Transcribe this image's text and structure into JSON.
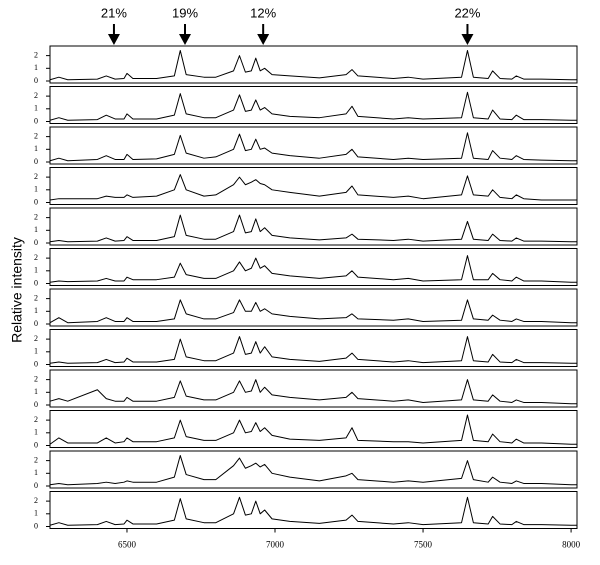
{
  "chart_data": {
    "type": "line",
    "y_label": "Relative intensity",
    "color": "#000000",
    "x": [
      6240,
      6270,
      6300,
      6400,
      6430,
      6460,
      6490,
      6500,
      6520,
      6600,
      6660,
      6680,
      6700,
      6760,
      6800,
      6860,
      6880,
      6900,
      6920,
      6935,
      6950,
      6965,
      6990,
      7050,
      7150,
      7240,
      7260,
      7280,
      7400,
      7450,
      7500,
      7630,
      7650,
      7670,
      7720,
      7735,
      7760,
      7800,
      7815,
      7840,
      7900,
      8000,
      8020
    ],
    "series": [
      {
        "values": [
          0.1,
          0.3,
          0.1,
          0.15,
          0.4,
          0.15,
          0.2,
          0.6,
          0.2,
          0.2,
          0.4,
          2.4,
          0.5,
          0.3,
          0.3,
          0.8,
          2.0,
          0.7,
          0.8,
          1.8,
          0.8,
          1.0,
          0.5,
          0.4,
          0.25,
          0.5,
          0.9,
          0.4,
          0.2,
          0.3,
          0.15,
          0.3,
          2.4,
          0.3,
          0.2,
          0.8,
          0.2,
          0.15,
          0.4,
          0.15,
          0.15,
          0.1,
          0.1
        ]
      },
      {
        "values": [
          0.1,
          0.3,
          0.1,
          0.15,
          0.5,
          0.2,
          0.2,
          0.6,
          0.2,
          0.2,
          0.5,
          2.2,
          0.6,
          0.3,
          0.3,
          0.9,
          2.1,
          0.8,
          0.9,
          1.7,
          0.9,
          1.1,
          0.6,
          0.4,
          0.3,
          0.6,
          1.2,
          0.4,
          0.2,
          0.3,
          0.2,
          0.3,
          2.3,
          0.3,
          0.2,
          0.9,
          0.2,
          0.15,
          0.5,
          0.15,
          0.15,
          0.1,
          0.1
        ]
      },
      {
        "values": [
          0.1,
          0.3,
          0.1,
          0.2,
          0.5,
          0.2,
          0.2,
          0.6,
          0.2,
          0.25,
          0.6,
          2.1,
          0.7,
          0.3,
          0.4,
          1.0,
          2.2,
          0.9,
          1.0,
          1.8,
          1.0,
          1.1,
          0.7,
          0.5,
          0.3,
          0.6,
          1.0,
          0.4,
          0.2,
          0.3,
          0.2,
          0.3,
          2.3,
          0.3,
          0.2,
          0.9,
          0.3,
          0.2,
          0.5,
          0.2,
          0.15,
          0.1,
          0.1
        ]
      },
      {
        "values": [
          0.2,
          0.3,
          0.3,
          0.3,
          0.5,
          0.4,
          0.4,
          0.6,
          0.4,
          0.5,
          1.0,
          2.2,
          1.0,
          0.5,
          0.6,
          1.4,
          2.0,
          1.4,
          1.6,
          1.8,
          1.5,
          1.4,
          1.0,
          0.8,
          0.5,
          0.8,
          1.3,
          0.6,
          0.4,
          0.5,
          0.3,
          0.6,
          2.1,
          0.6,
          0.5,
          1.0,
          0.4,
          0.3,
          0.6,
          0.3,
          0.2,
          0.2,
          0.2
        ]
      },
      {
        "values": [
          0.1,
          0.2,
          0.1,
          0.15,
          0.4,
          0.15,
          0.2,
          0.5,
          0.2,
          0.2,
          0.5,
          2.2,
          0.6,
          0.3,
          0.3,
          0.9,
          2.2,
          0.8,
          0.9,
          1.9,
          0.9,
          1.2,
          0.6,
          0.4,
          0.25,
          0.4,
          0.7,
          0.3,
          0.2,
          0.3,
          0.15,
          0.3,
          1.7,
          0.3,
          0.2,
          0.7,
          0.2,
          0.15,
          0.4,
          0.15,
          0.15,
          0.1,
          0.1
        ]
      },
      {
        "values": [
          0.1,
          0.2,
          0.15,
          0.2,
          0.4,
          0.2,
          0.2,
          0.5,
          0.3,
          0.3,
          0.5,
          1.6,
          0.7,
          0.4,
          0.4,
          1.0,
          1.7,
          1.0,
          1.2,
          2.0,
          1.2,
          1.4,
          0.8,
          0.6,
          0.4,
          0.6,
          1.0,
          0.5,
          0.3,
          0.4,
          0.2,
          0.3,
          2.2,
          0.3,
          0.3,
          0.8,
          0.3,
          0.2,
          0.5,
          0.2,
          0.2,
          0.1,
          0.1
        ]
      },
      {
        "values": [
          0.1,
          0.5,
          0.1,
          0.2,
          0.5,
          0.2,
          0.2,
          0.5,
          0.2,
          0.2,
          0.4,
          1.9,
          0.8,
          0.4,
          0.4,
          0.9,
          1.9,
          1.0,
          1.0,
          1.7,
          1.0,
          1.2,
          0.8,
          0.6,
          0.4,
          0.5,
          0.8,
          0.4,
          0.3,
          0.4,
          0.2,
          0.3,
          1.9,
          0.4,
          0.3,
          0.7,
          0.3,
          0.2,
          0.4,
          0.2,
          0.2,
          0.1,
          0.1
        ]
      },
      {
        "values": [
          0.1,
          0.2,
          0.1,
          0.15,
          0.4,
          0.15,
          0.2,
          0.5,
          0.2,
          0.2,
          0.4,
          2.0,
          0.6,
          0.3,
          0.3,
          0.9,
          2.2,
          0.8,
          0.9,
          1.8,
          0.9,
          1.4,
          0.6,
          0.4,
          0.25,
          0.5,
          0.9,
          0.4,
          0.2,
          0.3,
          0.15,
          0.3,
          2.2,
          0.3,
          0.2,
          0.8,
          0.2,
          0.15,
          0.4,
          0.15,
          0.15,
          0.1,
          0.1
        ]
      },
      {
        "values": [
          0.3,
          0.5,
          0.3,
          1.2,
          0.5,
          0.3,
          0.3,
          0.6,
          0.3,
          0.3,
          0.6,
          1.9,
          0.7,
          0.4,
          0.4,
          1.0,
          1.9,
          1.0,
          1.1,
          2.0,
          1.0,
          1.4,
          0.8,
          0.6,
          0.4,
          0.6,
          1.0,
          0.5,
          0.3,
          0.4,
          0.2,
          0.4,
          2.0,
          0.4,
          0.3,
          0.8,
          0.3,
          0.2,
          0.4,
          0.2,
          0.2,
          0.1,
          0.1
        ]
      },
      {
        "values": [
          0.1,
          0.6,
          0.2,
          0.2,
          0.6,
          0.2,
          0.3,
          0.6,
          0.3,
          0.3,
          0.6,
          2.0,
          0.7,
          0.4,
          0.4,
          1.0,
          2.0,
          1.0,
          1.1,
          1.8,
          1.1,
          1.4,
          0.8,
          0.5,
          0.4,
          0.6,
          1.4,
          0.4,
          0.3,
          0.3,
          0.2,
          0.4,
          2.4,
          0.4,
          0.3,
          0.9,
          0.3,
          0.2,
          0.5,
          0.2,
          0.2,
          0.1,
          0.1
        ]
      },
      {
        "values": [
          0.1,
          0.2,
          0.1,
          0.2,
          0.3,
          0.2,
          0.3,
          0.4,
          0.3,
          0.3,
          0.7,
          2.4,
          0.9,
          0.5,
          0.5,
          1.6,
          2.2,
          1.4,
          1.6,
          1.8,
          1.5,
          1.7,
          1.0,
          0.7,
          0.4,
          0.8,
          1.0,
          0.5,
          0.3,
          0.4,
          0.3,
          0.6,
          2.0,
          0.5,
          0.3,
          0.7,
          0.3,
          0.2,
          0.4,
          0.2,
          0.2,
          0.1,
          0.1
        ]
      },
      {
        "values": [
          0.1,
          0.3,
          0.1,
          0.15,
          0.4,
          0.15,
          0.2,
          0.5,
          0.2,
          0.2,
          0.5,
          2.2,
          0.6,
          0.3,
          0.3,
          1.0,
          2.3,
          0.9,
          1.0,
          2.0,
          1.0,
          1.3,
          0.6,
          0.4,
          0.25,
          0.5,
          0.9,
          0.4,
          0.2,
          0.3,
          0.15,
          0.3,
          2.3,
          0.3,
          0.2,
          0.8,
          0.2,
          0.15,
          0.4,
          0.15,
          0.15,
          0.1,
          0.1
        ]
      }
    ],
    "xlim": [
      6240,
      8020
    ],
    "xticks": [
      6500,
      7000,
      7500,
      8000
    ],
    "ylim": [
      0,
      2.6
    ],
    "yticks": [
      0,
      1,
      2
    ],
    "annotations": [
      {
        "x": 6456,
        "text": "21%"
      },
      {
        "x": 6696,
        "text": "19%"
      },
      {
        "x": 6960,
        "text": "12%"
      },
      {
        "x": 7650,
        "text": "22%"
      }
    ]
  }
}
